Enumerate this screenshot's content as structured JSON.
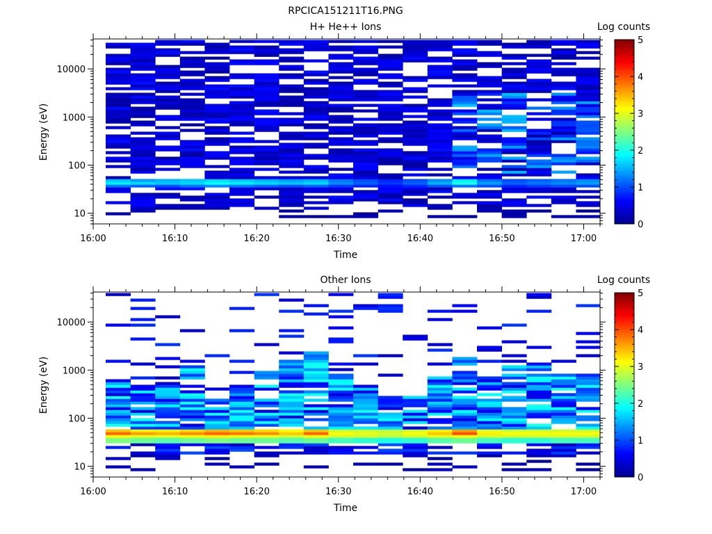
{
  "figure_title": "RPCICA151211T16.PNG",
  "chart_data": [
    {
      "type": "heatmap",
      "title": "H+ He++ Ions",
      "xlabel": "Time",
      "ylabel": "Energy (eV)",
      "x_ticks": [
        "16:00",
        "16:10",
        "16:20",
        "16:30",
        "16:40",
        "16:50",
        "17:00"
      ],
      "x_range": [
        "16:00",
        "17:02"
      ],
      "y_ticks": [
        "10",
        "100",
        "1000",
        "10000"
      ],
      "y_range": [
        6,
        42000
      ],
      "y_scale": "log",
      "colorbar": {
        "label": "Log counts",
        "ticks": [
          "0",
          "1",
          "2",
          "3",
          "4",
          "5"
        ],
        "range": [
          0,
          5
        ]
      },
      "time_bins": [
        "16:01:40",
        "16:04:50",
        "16:08:00",
        "16:11:10",
        "16:14:20",
        "16:17:30",
        "16:20:40",
        "16:23:50",
        "16:27:00",
        "16:30:10",
        "16:33:20",
        "16:36:30",
        "16:39:40",
        "16:42:50",
        "16:46:00",
        "16:49:10",
        "16:52:20",
        "16:55:30",
        "16:58:40",
        "17:01:50"
      ],
      "band_energies_ev": [
        {
          "energy": 50,
          "values": [
            1.6,
            1.4,
            1.5,
            1.6,
            1.7,
            1.6,
            1.5,
            1.4,
            1.5,
            1.2,
            1.0,
            0.8,
            1.0,
            1.3,
            1.8,
            1.2,
            1.0,
            1.1,
            1.2,
            1.3
          ]
        },
        {
          "energy": 42,
          "values": [
            1.8,
            1.7,
            1.6,
            1.7,
            1.9,
            1.8,
            1.7,
            1.6,
            1.7,
            1.3,
            1.1,
            0.9,
            1.1,
            1.5,
            2.0,
            1.4,
            1.1,
            1.2,
            1.3,
            1.4
          ]
        },
        {
          "energy": 36,
          "values": [
            1.2,
            1.1,
            1.0,
            1.2,
            1.3,
            1.2,
            1.1,
            1.0,
            1.1,
            0.9,
            0.8,
            0.7,
            0.8,
            1.0,
            1.2,
            1.0,
            0.8,
            0.9,
            1.0,
            1.0
          ]
        }
      ],
      "typical_counts_high_energy": 0.5
    },
    {
      "type": "heatmap",
      "title": "Other Ions",
      "xlabel": "Time",
      "ylabel": "Energy (eV)",
      "x_ticks": [
        "16:00",
        "16:10",
        "16:20",
        "16:30",
        "16:40",
        "16:50",
        "17:00"
      ],
      "x_range": [
        "16:00",
        "17:02"
      ],
      "y_ticks": [
        "10",
        "100",
        "1000",
        "10000"
      ],
      "y_range": [
        6,
        42000
      ],
      "y_scale": "log",
      "colorbar": {
        "label": "Log counts",
        "ticks": [
          "0",
          "1",
          "2",
          "3",
          "4",
          "5"
        ],
        "range": [
          0,
          5
        ]
      },
      "time_bins": [
        "16:01:40",
        "16:04:50",
        "16:08:00",
        "16:11:10",
        "16:14:20",
        "16:17:30",
        "16:20:40",
        "16:23:50",
        "16:27:00",
        "16:30:10",
        "16:33:20",
        "16:36:30",
        "16:39:40",
        "16:42:50",
        "16:46:00",
        "16:49:10",
        "16:52:20",
        "16:55:30",
        "16:58:40",
        "17:01:50"
      ],
      "band_energies_ev": [
        {
          "energy": 56,
          "values": [
            3.4,
            3.2,
            3.2,
            3.3,
            3.5,
            3.4,
            3.3,
            3.1,
            3.4,
            2.9,
            2.9,
            2.8,
            2.9,
            3.2,
            3.6,
            3.0,
            2.9,
            2.9,
            2.9,
            2.9
          ]
        },
        {
          "energy": 47,
          "values": [
            3.9,
            3.6,
            3.5,
            3.7,
            3.9,
            3.8,
            3.7,
            3.4,
            3.9,
            3.1,
            3.0,
            2.9,
            3.1,
            3.4,
            4.0,
            3.2,
            3.1,
            3.1,
            3.1,
            3.1
          ]
        },
        {
          "energy": 40,
          "values": [
            3.1,
            3.0,
            3.0,
            3.1,
            3.2,
            3.1,
            3.0,
            2.9,
            3.1,
            2.9,
            2.9,
            2.8,
            2.9,
            3.0,
            3.1,
            2.9,
            2.9,
            2.9,
            2.9,
            2.9
          ]
        },
        {
          "energy": 34,
          "values": [
            2.5,
            2.4,
            2.3,
            2.4,
            2.5,
            2.4,
            2.4,
            2.3,
            2.4,
            2.2,
            2.1,
            2.0,
            2.1,
            2.3,
            2.4,
            2.2,
            2.1,
            2.1,
            2.2,
            2.2
          ]
        }
      ],
      "upper_envelope_ev": [
        600,
        500,
        450,
        1300,
        300,
        500,
        1000,
        1600,
        2500,
        800,
        500,
        280,
        300,
        700,
        2000,
        700,
        1300,
        1400,
        800,
        700
      ]
    }
  ]
}
